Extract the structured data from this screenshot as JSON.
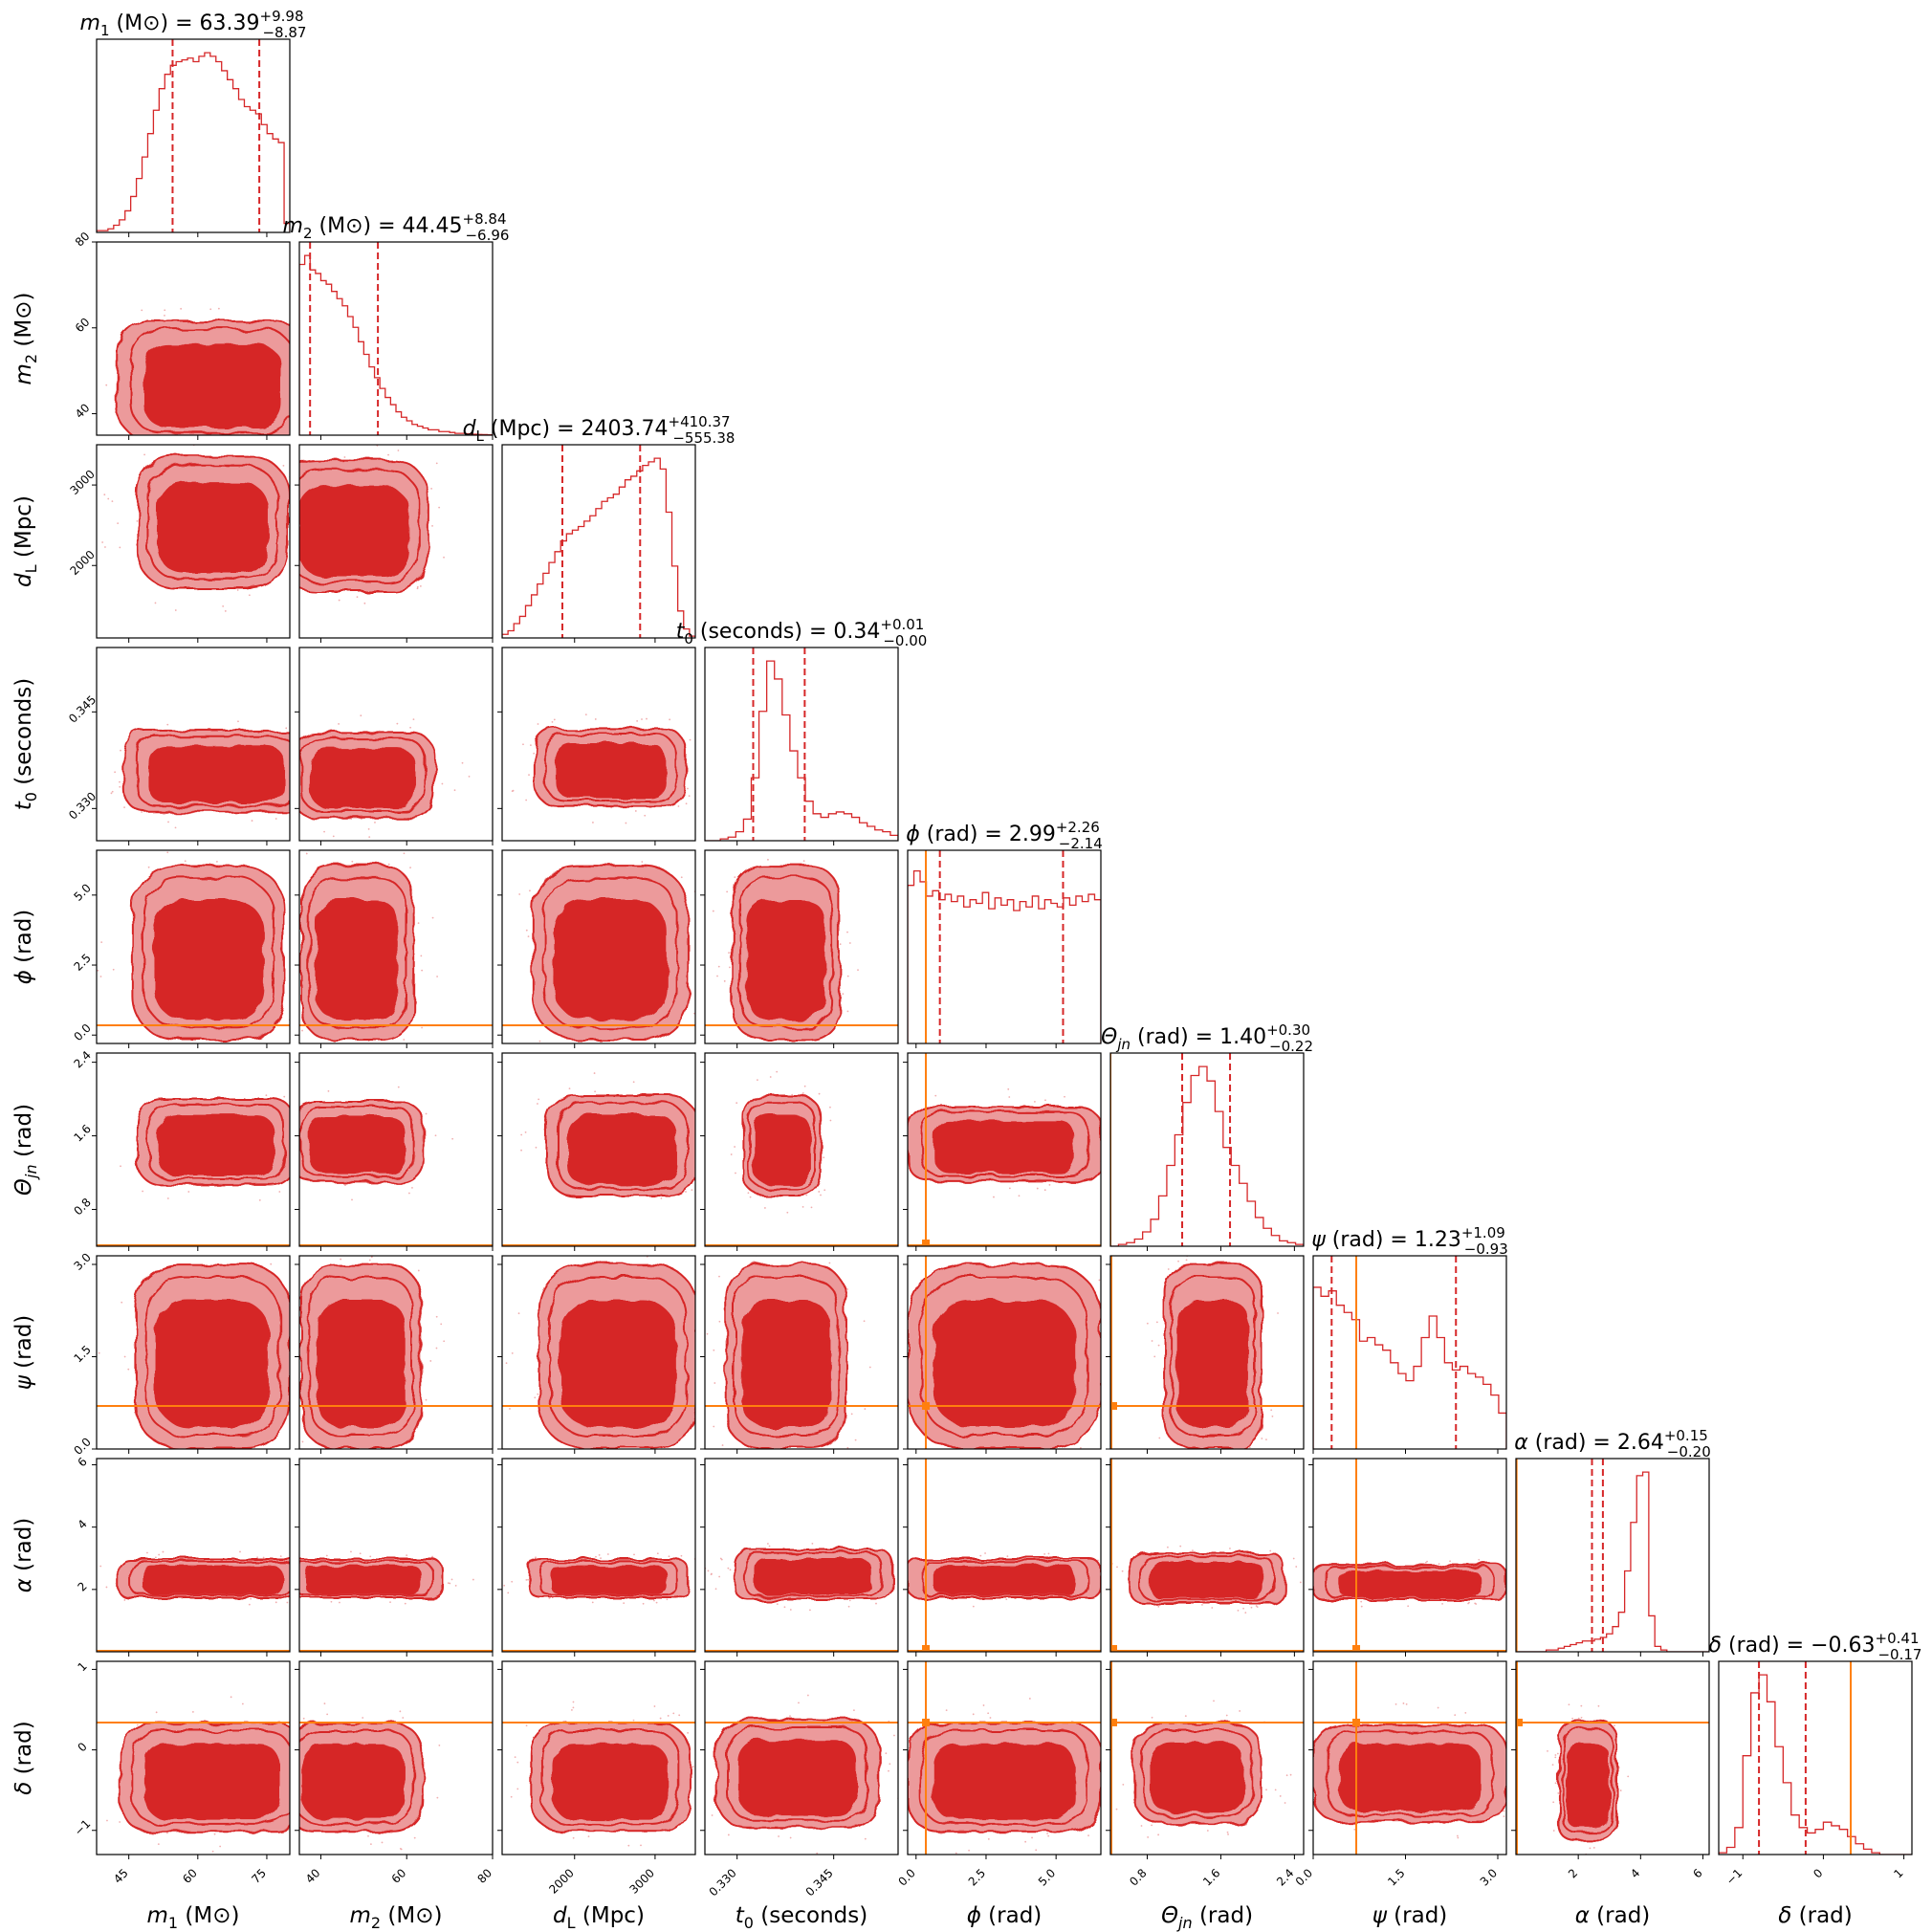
{
  "chart_data": {
    "type": "corner",
    "colors": {
      "posterior": "#d62728",
      "posterior_light": "#ec9a9b",
      "truth": "#ff7f0e",
      "frame": "#000000"
    },
    "parameters": [
      {
        "id": "m1",
        "sym": "m",
        "sub": "1",
        "unit": " (M⊙)",
        "title_value": "63.39",
        "plus": "+9.98",
        "minus": "−8.87",
        "range": [
          38,
          80
        ],
        "ticks": [
          45,
          60,
          75
        ],
        "tick_labels": [
          "45",
          "60",
          "75"
        ],
        "median": 63.39,
        "q_low": 54.52,
        "q_high": 73.37,
        "truth": null,
        "hist": [
          0.01,
          0.01,
          0.02,
          0.04,
          0.07,
          0.12,
          0.2,
          0.3,
          0.42,
          0.55,
          0.68,
          0.8,
          0.88,
          0.93,
          0.95,
          0.96,
          0.97,
          0.95,
          0.98,
          1.0,
          0.98,
          0.95,
          0.9,
          0.85,
          0.8,
          0.74,
          0.7,
          0.68,
          0.66,
          0.6,
          0.55,
          0.52,
          0.5,
          0.05
        ]
      },
      {
        "id": "m2",
        "sym": "m",
        "sub": "2",
        "unit": " (M⊙)",
        "title_value": "44.45",
        "plus": "+8.84",
        "minus": "−6.96",
        "range": [
          35,
          80
        ],
        "ticks": [
          40,
          60,
          80
        ],
        "tick_labels": [
          "40",
          "60",
          "80"
        ],
        "median": 44.45,
        "q_low": 37.49,
        "q_high": 53.29,
        "truth": null,
        "hist": [
          0.95,
          1.0,
          0.92,
          0.9,
          0.86,
          0.84,
          0.8,
          0.76,
          0.72,
          0.66,
          0.6,
          0.52,
          0.45,
          0.38,
          0.32,
          0.26,
          0.21,
          0.17,
          0.13,
          0.1,
          0.08,
          0.06,
          0.05,
          0.04,
          0.03,
          0.03,
          0.02,
          0.02,
          0.015,
          0.01,
          0.01,
          0.008,
          0.005,
          0.004,
          0.003,
          0.002
        ]
      },
      {
        "id": "dL",
        "sym": "d",
        "sub": "L",
        "unit": " (Mpc)",
        "title_value": "2403.74",
        "plus": "+410.37",
        "minus": "−555.38",
        "range": [
          1100,
          3500
        ],
        "ticks": [
          2000,
          3000
        ],
        "tick_labels": [
          "2000",
          "3000"
        ],
        "median": 2403.74,
        "q_low": 1848.36,
        "q_high": 2814.11,
        "truth": null,
        "hist": [
          0.02,
          0.04,
          0.08,
          0.12,
          0.18,
          0.24,
          0.3,
          0.36,
          0.42,
          0.48,
          0.54,
          0.58,
          0.6,
          0.62,
          0.65,
          0.68,
          0.72,
          0.76,
          0.78,
          0.8,
          0.84,
          0.88,
          0.9,
          0.93,
          0.96,
          0.98,
          1.0,
          0.94,
          0.7,
          0.4,
          0.15,
          0.05,
          0.01
        ]
      },
      {
        "id": "t0",
        "sym": "t",
        "sub": "0",
        "unit": " (seconds)",
        "title_value": "0.34",
        "plus": "+0.01",
        "minus": "−0.00",
        "range": [
          0.325,
          0.355
        ],
        "ticks": [
          0.33,
          0.345
        ],
        "tick_labels": [
          "0.330",
          "0.345"
        ],
        "median": 0.336,
        "q_low": 0.3325,
        "q_high": 0.3405,
        "truth": null,
        "hist": [
          0.0,
          0.0,
          0.01,
          0.02,
          0.05,
          0.12,
          0.35,
          0.72,
          1.0,
          0.9,
          0.7,
          0.5,
          0.35,
          0.22,
          0.15,
          0.13,
          0.15,
          0.16,
          0.15,
          0.13,
          0.1,
          0.08,
          0.06,
          0.05,
          0.03
        ]
      },
      {
        "id": "phi",
        "sym": "ϕ",
        "sub": "",
        "unit": " (rad)",
        "title_value": "2.99",
        "plus": "+2.26",
        "minus": "−2.14",
        "range": [
          -0.3,
          6.6
        ],
        "ticks": [
          0.0,
          2.5,
          5.0
        ],
        "tick_labels": [
          "0.0",
          "2.5",
          "5.0"
        ],
        "median": 2.99,
        "q_low": 0.85,
        "q_high": 5.25,
        "truth": 0.35,
        "hist": [
          0.88,
          0.96,
          0.9,
          0.82,
          0.85,
          0.8,
          0.83,
          0.79,
          0.82,
          0.76,
          0.8,
          0.78,
          0.84,
          0.75,
          0.81,
          0.77,
          0.8,
          0.74,
          0.79,
          0.76,
          0.82,
          0.75,
          0.8,
          0.78,
          0.76,
          0.81,
          0.77,
          0.82,
          0.79,
          0.83,
          0.8
        ]
      },
      {
        "id": "thetajn",
        "sym": "Θ",
        "sub": "jn",
        "unit": " (rad)",
        "title_value": "1.40",
        "plus": "+0.30",
        "minus": "−0.22",
        "range": [
          0.4,
          2.5
        ],
        "ticks": [
          0.8,
          1.6,
          2.4
        ],
        "tick_labels": [
          "0.8",
          "1.6",
          "2.4"
        ],
        "median": 1.4,
        "q_low": 1.18,
        "q_high": 1.7,
        "truth": 0.4,
        "hist": [
          0.0,
          0.01,
          0.02,
          0.04,
          0.08,
          0.15,
          0.28,
          0.45,
          0.62,
          0.8,
          0.95,
          1.0,
          0.92,
          0.75,
          0.55,
          0.45,
          0.35,
          0.25,
          0.16,
          0.1,
          0.06,
          0.03,
          0.02,
          0.01
        ]
      },
      {
        "id": "psi",
        "sym": "ψ",
        "sub": "",
        "unit": " (rad)",
        "title_value": "1.23",
        "plus": "+1.09",
        "minus": "−0.93",
        "range": [
          0.0,
          3.14
        ],
        "ticks": [
          0.0,
          1.5,
          3.0
        ],
        "tick_labels": [
          "0.0",
          "1.5",
          "3.0"
        ],
        "median": 1.23,
        "q_low": 0.3,
        "q_high": 2.32,
        "truth": 0.7,
        "hist": [
          0.9,
          0.85,
          0.88,
          0.8,
          0.76,
          0.72,
          0.6,
          0.62,
          0.58,
          0.55,
          0.48,
          0.42,
          0.38,
          0.46,
          0.62,
          0.74,
          0.62,
          0.48,
          0.44,
          0.46,
          0.42,
          0.4,
          0.36,
          0.3,
          0.2
        ]
      },
      {
        "id": "alpha",
        "sym": "α",
        "sub": "",
        "unit": " (rad)",
        "title_value": "2.64",
        "plus": "+0.15",
        "minus": "−0.20",
        "range": [
          0.0,
          6.2
        ],
        "ticks": [
          2,
          4,
          6
        ],
        "tick_labels": [
          "2",
          "4",
          "6"
        ],
        "median": 2.64,
        "q_low": 2.44,
        "q_high": 2.79,
        "truth": 0.02,
        "hist": [
          0.0,
          0.0,
          0.0,
          0.0,
          0.0,
          0.01,
          0.01,
          0.02,
          0.03,
          0.04,
          0.05,
          0.06,
          0.06,
          0.07,
          0.08,
          0.1,
          0.14,
          0.22,
          0.45,
          0.72,
          0.98,
          1.0,
          0.2,
          0.03,
          0.01,
          0.0,
          0.0,
          0.0,
          0.0,
          0.0,
          0.0,
          0.0
        ]
      },
      {
        "id": "delta",
        "sym": "δ",
        "sub": "",
        "unit": " (rad)",
        "title_value": "−0.63",
        "plus": "+0.41",
        "minus": "−0.17",
        "range": [
          -1.3,
          1.1
        ],
        "ticks": [
          -1,
          0,
          1
        ],
        "tick_labels": [
          "−1",
          "0",
          "1"
        ],
        "median": -0.63,
        "q_low": -0.8,
        "q_high": -0.22,
        "truth": 0.34,
        "hist": [
          0.01,
          0.04,
          0.15,
          0.55,
          0.9,
          1.0,
          0.85,
          0.6,
          0.4,
          0.22,
          0.15,
          0.12,
          0.14,
          0.18,
          0.16,
          0.14,
          0.1,
          0.06,
          0.03,
          0.01,
          0.0,
          0.0,
          0.0,
          0.0
        ]
      }
    ]
  }
}
